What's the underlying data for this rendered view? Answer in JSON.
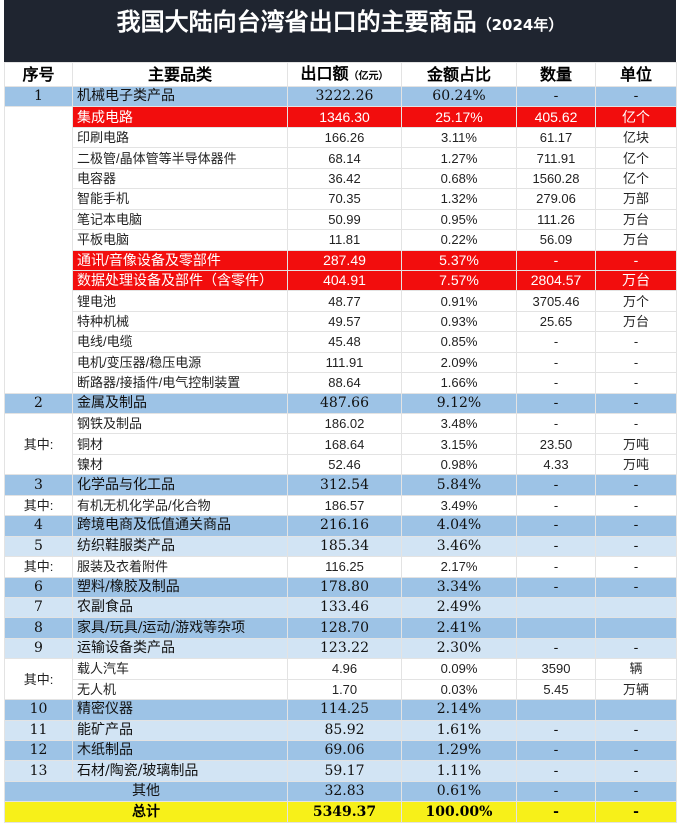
{
  "title": "我国大陆向台湾省出口的主要商品",
  "title_year": "（2024年）",
  "headers": {
    "seq": "序号",
    "name": "主要品类",
    "value": "出口额",
    "value_unit": "（亿元）",
    "share": "金额占比",
    "qty": "数量",
    "unit": "单位"
  },
  "colors": {
    "header_bg": "#1f2530",
    "main_dark": "#9dc3e6",
    "main_light": "#d2e4f4",
    "highlight": "#f20d0d",
    "total": "#f7f019"
  },
  "group_label": "其中:",
  "rows": [
    {
      "type": "dark",
      "seq": "1",
      "name": "机械电子类产品",
      "value": "3222.26",
      "share": "60.24%",
      "qty": "-",
      "unit": "-"
    },
    {
      "type": "red",
      "group": "g1",
      "name": "集成电路",
      "value": "1346.30",
      "share": "25.17%",
      "qty": "405.62",
      "unit": "亿个"
    },
    {
      "type": "sub",
      "group": "g1",
      "name": "印刷电路",
      "value": "166.26",
      "share": "3.11%",
      "qty": "61.17",
      "unit": "亿块"
    },
    {
      "type": "sub",
      "group": "g1",
      "name": "二极管/晶体管等半导体器件",
      "value": "68.14",
      "share": "1.27%",
      "qty": "711.91",
      "unit": "亿个"
    },
    {
      "type": "sub",
      "group": "g1",
      "name": "电容器",
      "value": "36.42",
      "share": "0.68%",
      "qty": "1560.28",
      "unit": "亿个"
    },
    {
      "type": "sub",
      "group": "g1",
      "name": "智能手机",
      "value": "70.35",
      "share": "1.32%",
      "qty": "279.06",
      "unit": "万部"
    },
    {
      "type": "sub",
      "group": "g1",
      "name": "笔记本电脑",
      "value": "50.99",
      "share": "0.95%",
      "qty": "111.26",
      "unit": "万台"
    },
    {
      "type": "sub",
      "group": "g1",
      "name": "平板电脑",
      "value": "11.81",
      "share": "0.22%",
      "qty": "56.09",
      "unit": "万台"
    },
    {
      "type": "red",
      "group": "g1",
      "name": "通讯/音像设备及零部件",
      "value": "287.49",
      "share": "5.37%",
      "qty": "-",
      "unit": "-"
    },
    {
      "type": "red",
      "group": "g1",
      "name": "数据处理设备及部件（含零件）",
      "value": "404.91",
      "share": "7.57%",
      "qty": "2804.57",
      "unit": "万台"
    },
    {
      "type": "sub",
      "group": "g1",
      "name": "锂电池",
      "value": "48.77",
      "share": "0.91%",
      "qty": "3705.46",
      "unit": "万个"
    },
    {
      "type": "sub",
      "group": "g1",
      "name": "特种机械",
      "value": "49.57",
      "share": "0.93%",
      "qty": "25.65",
      "unit": "万台"
    },
    {
      "type": "sub",
      "group": "g1",
      "name": "电线/电缆",
      "value": "45.48",
      "share": "0.85%",
      "qty": "-",
      "unit": "-"
    },
    {
      "type": "sub",
      "group": "g1",
      "name": "电机/变压器/稳压电源",
      "value": "111.91",
      "share": "2.09%",
      "qty": "-",
      "unit": "-"
    },
    {
      "type": "sub",
      "group": "g1",
      "name": "断路器/接插件/电气控制装置",
      "value": "88.64",
      "share": "1.66%",
      "qty": "-",
      "unit": "-"
    },
    {
      "type": "dark",
      "seq": "2",
      "name": "金属及制品",
      "value": "487.66",
      "share": "9.12%",
      "qty": "-",
      "unit": "-"
    },
    {
      "type": "sub",
      "group": "g2",
      "name": "钢铁及制品",
      "value": "186.02",
      "share": "3.48%",
      "qty": "-",
      "unit": "-"
    },
    {
      "type": "sub",
      "group": "g2",
      "name": "铜材",
      "value": "168.64",
      "share": "3.15%",
      "qty": "23.50",
      "unit": "万吨"
    },
    {
      "type": "sub",
      "group": "g2",
      "name": "镍材",
      "value": "52.46",
      "share": "0.98%",
      "qty": "4.33",
      "unit": "万吨"
    },
    {
      "type": "dark",
      "seq": "3",
      "name": "化学品与化工品",
      "value": "312.54",
      "share": "5.84%",
      "qty": "-",
      "unit": "-"
    },
    {
      "type": "sub",
      "group": "g3",
      "name": "有机无机化学品/化合物",
      "value": "186.57",
      "share": "3.49%",
      "qty": "-",
      "unit": "-"
    },
    {
      "type": "dark",
      "seq": "4",
      "name": "跨境电商及低值通关商品",
      "value": "216.16",
      "share": "4.04%",
      "qty": "-",
      "unit": "-"
    },
    {
      "type": "light",
      "seq": "5",
      "name": "纺织鞋服类产品",
      "value": "185.34",
      "share": "3.46%",
      "qty": "-",
      "unit": "-"
    },
    {
      "type": "sub",
      "group": "g5",
      "name": "服装及衣着附件",
      "value": "116.25",
      "share": "2.17%",
      "qty": "-",
      "unit": "-"
    },
    {
      "type": "dark",
      "seq": "6",
      "name": "塑料/橡胶及制品",
      "value": "178.80",
      "share": "3.34%",
      "qty": "-",
      "unit": "-"
    },
    {
      "type": "light",
      "seq": "7",
      "name": "农副食品",
      "value": "133.46",
      "share": "2.49%",
      "qty": "",
      "unit": ""
    },
    {
      "type": "dark",
      "seq": "8",
      "name": "家具/玩具/运动/游戏等杂项",
      "value": "128.70",
      "share": "2.41%",
      "qty": "",
      "unit": ""
    },
    {
      "type": "light",
      "seq": "9",
      "name": "运输设备类产品",
      "value": "123.22",
      "share": "2.30%",
      "qty": "-",
      "unit": "-"
    },
    {
      "type": "sub",
      "group": "g9",
      "name": "载人汽车",
      "value": "4.96",
      "share": "0.09%",
      "qty": "3590",
      "unit": "辆"
    },
    {
      "type": "sub",
      "group": "g9",
      "name": "无人机",
      "value": "1.70",
      "share": "0.03%",
      "qty": "5.45",
      "unit": "万辆"
    },
    {
      "type": "dark",
      "seq": "10",
      "name": "精密仪器",
      "value": "114.25",
      "share": "2.14%",
      "qty": "",
      "unit": ""
    },
    {
      "type": "light",
      "seq": "11",
      "name": "能矿产品",
      "value": "85.92",
      "share": "1.61%",
      "qty": "-",
      "unit": "-"
    },
    {
      "type": "dark",
      "seq": "12",
      "name": "木纸制品",
      "value": "69.06",
      "share": "1.29%",
      "qty": "-",
      "unit": "-"
    },
    {
      "type": "light",
      "seq": "13",
      "name": "石材/陶瓷/玻璃制品",
      "value": "59.17",
      "share": "1.11%",
      "qty": "-",
      "unit": "-"
    },
    {
      "type": "dark",
      "seq": "",
      "name": "其他",
      "value": "32.83",
      "share": "0.61%",
      "qty": "-",
      "unit": "-",
      "center": true
    },
    {
      "type": "total",
      "seq": "",
      "name": "总计",
      "value": "5349.37",
      "share": "100.00%",
      "qty": "-",
      "unit": "-",
      "center": true
    }
  ]
}
